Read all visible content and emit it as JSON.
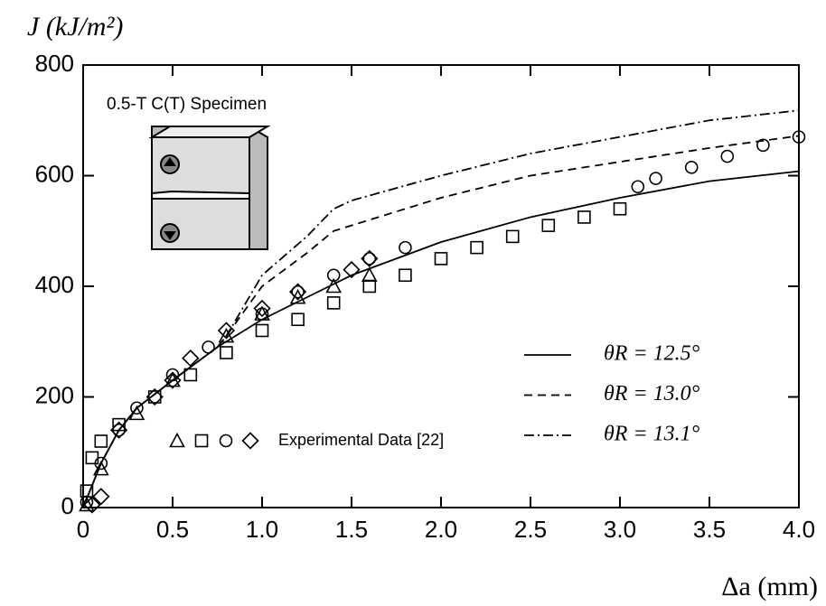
{
  "chart_data": {
    "type": "line",
    "y_label": "J (kJ/m²)",
    "x_label": "Δa (mm)",
    "annotation": "0.5-T C(T) Specimen",
    "experimental_label": "Experimental Data [22]",
    "xlim": [
      0,
      4
    ],
    "ylim": [
      0,
      800
    ],
    "xticks": [
      0,
      0.5,
      {
        "value": 1,
        "label": "1.0"
      },
      1.5,
      {
        "value": 2,
        "label": "2.0"
      },
      2.5,
      {
        "value": 3,
        "label": "3.0"
      },
      3.5,
      {
        "value": 4,
        "label": "4.0"
      }
    ],
    "yticks": [
      0,
      200,
      400,
      600,
      800
    ],
    "series": [
      {
        "name": "θR = 12.5°",
        "style": "solid",
        "color": "#000",
        "x": [
          0,
          0.1,
          0.2,
          0.3,
          0.5,
          0.75,
          1.0,
          1.25,
          1.5,
          2.0,
          2.5,
          3.0,
          3.5,
          4.0
        ],
        "values": [
          0,
          80,
          140,
          180,
          230,
          290,
          340,
          380,
          420,
          480,
          525,
          560,
          590,
          608
        ]
      },
      {
        "name": "θR = 13.0°",
        "style": "dashed",
        "color": "#000",
        "x": [
          0,
          0.1,
          0.2,
          0.3,
          0.5,
          0.75,
          0.8,
          1.0,
          1.25,
          1.4,
          1.5,
          2.0,
          2.5,
          3.0,
          3.5,
          4.0
        ],
        "values": [
          0,
          80,
          140,
          180,
          230,
          290,
          310,
          400,
          460,
          500,
          510,
          560,
          600,
          625,
          650,
          672
        ]
      },
      {
        "name": "θR = 13.1°",
        "style": "dashdot",
        "color": "#000",
        "x": [
          0,
          0.1,
          0.2,
          0.3,
          0.5,
          0.75,
          0.8,
          1.0,
          1.25,
          1.4,
          1.5,
          2.0,
          2.5,
          3.0,
          3.5,
          4.0
        ],
        "values": [
          0,
          80,
          140,
          180,
          230,
          290,
          310,
          420,
          490,
          540,
          555,
          600,
          640,
          670,
          700,
          718
        ]
      },
      {
        "marker": "triangle",
        "color": "#000",
        "x": [
          0.02,
          0.1,
          0.3,
          0.5,
          0.8,
          1.0,
          1.2,
          1.4,
          1.6
        ],
        "values": [
          5,
          70,
          170,
          230,
          310,
          350,
          380,
          400,
          420
        ]
      },
      {
        "marker": "square",
        "color": "#000",
        "x": [
          0.02,
          0.05,
          0.1,
          0.2,
          0.4,
          0.6,
          0.8,
          1.0,
          1.2,
          1.4,
          1.6,
          1.8,
          2.0,
          2.2,
          2.4,
          2.6,
          2.8,
          3.0
        ],
        "values": [
          30,
          90,
          120,
          150,
          200,
          240,
          280,
          320,
          340,
          370,
          400,
          420,
          450,
          470,
          490,
          510,
          525,
          540
        ]
      },
      {
        "marker": "circle",
        "color": "#000",
        "x": [
          0.02,
          0.1,
          0.2,
          0.3,
          0.5,
          0.7,
          1.0,
          1.2,
          1.4,
          1.6,
          1.8,
          3.1,
          3.2,
          3.4,
          3.6,
          3.8,
          4.0
        ],
        "values": [
          10,
          80,
          140,
          180,
          240,
          290,
          350,
          390,
          420,
          450,
          470,
          580,
          595,
          615,
          635,
          655,
          670
        ]
      },
      {
        "marker": "diamond",
        "color": "#000",
        "x": [
          0.05,
          0.1,
          0.2,
          0.4,
          0.5,
          0.6,
          0.8,
          1.0,
          1.2,
          1.5,
          1.6
        ],
        "values": [
          5,
          20,
          140,
          200,
          230,
          270,
          320,
          360,
          390,
          430,
          450
        ]
      }
    ]
  }
}
